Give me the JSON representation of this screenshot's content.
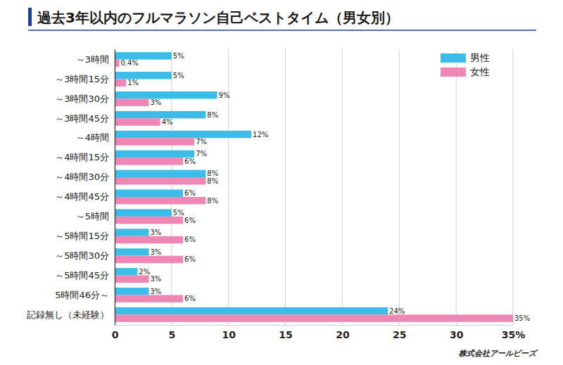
{
  "chart_data": {
    "type": "bar",
    "title": "過去3年以内のフルマラソン自己ベストタイム（男女別）",
    "orientation": "horizontal",
    "categories": [
      "～3時間",
      "～3時間15分",
      "～3時間30分",
      "～3時間45分",
      "～4時間",
      "～4時間15分",
      "～4時間30分",
      "～4時間45分",
      "～5時間",
      "～5時間15分",
      "～5時間30分",
      "～5時間45分",
      "5時間46分～",
      "記録無し（未経験）"
    ],
    "series": [
      {
        "name": "男性",
        "color": "#3cbde9",
        "values": [
          5,
          5,
          9,
          8,
          12,
          7,
          8,
          6,
          5,
          3,
          3,
          2,
          3,
          24
        ],
        "value_labels": [
          "5%",
          "5%",
          "9%",
          "8%",
          "12%",
          "7%",
          "8%",
          "6%",
          "5%",
          "3%",
          "3%",
          "2%",
          "3%",
          "24%"
        ]
      },
      {
        "name": "女性",
        "color": "#ef87b5",
        "values": [
          0.4,
          1,
          3,
          4,
          7,
          6,
          8,
          8,
          6,
          6,
          6,
          3,
          6,
          35
        ],
        "value_labels": [
          "0.4%",
          "1%",
          "3%",
          "4%",
          "7%",
          "6%",
          "8%",
          "8%",
          "6%",
          "6%",
          "6%",
          "3%",
          "6%",
          "35%"
        ]
      }
    ],
    "xlim": [
      0,
      35
    ],
    "xticks": [
      0,
      5,
      10,
      15,
      20,
      25,
      30,
      {
        "value": 35,
        "label": "35%"
      }
    ],
    "grid": true,
    "legend": "upper right",
    "data_labels": true,
    "annotations": [
      "株式会社アールビーズ"
    ]
  }
}
